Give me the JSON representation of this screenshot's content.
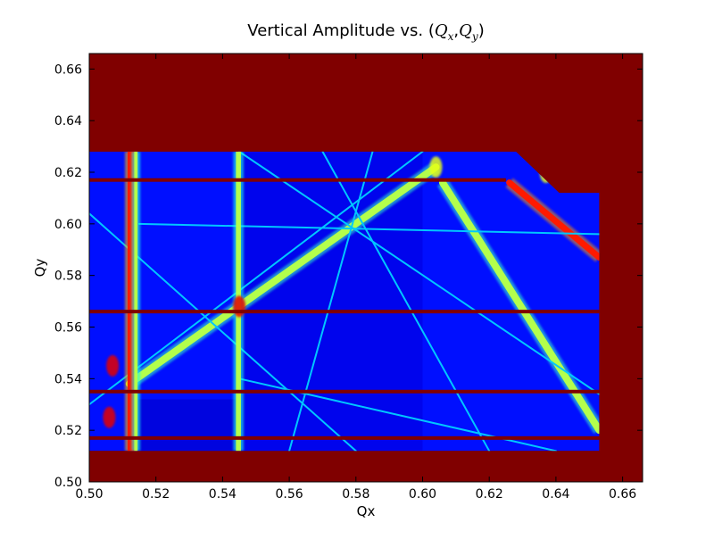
{
  "chart_data": {
    "type": "heatmap",
    "title": {
      "text": "Vertical Amplitude vs. ",
      "open": "(",
      "qx_base": "Q",
      "qx_sub": "x",
      "comma": ",",
      "qy_base": "Q",
      "qy_sub": "y",
      "close": ")"
    },
    "xlabel": "Qx",
    "ylabel": "Qy",
    "xlim": [
      0.5,
      0.666
    ],
    "ylim": [
      0.5,
      0.666
    ],
    "xticks": [
      "0.50",
      "0.52",
      "0.54",
      "0.56",
      "0.58",
      "0.60",
      "0.62",
      "0.64",
      "0.66"
    ],
    "yticks": [
      "0.50",
      "0.52",
      "0.54",
      "0.56",
      "0.58",
      "0.60",
      "0.62",
      "0.64",
      "0.66"
    ],
    "colormap": "jet",
    "data_extent": {
      "x": [
        0.5,
        0.653
      ],
      "y": [
        0.512,
        0.628
      ]
    },
    "background_color": "#800000",
    "vertical_bands": [
      {
        "x": [
          0.5115,
          0.5135
        ],
        "level": "high"
      },
      {
        "x": [
          0.5135,
          0.5145
        ],
        "level": "mid"
      },
      {
        "x": [
          0.544,
          0.5455
        ],
        "level": "mid"
      }
    ],
    "horizontal_lines": [
      {
        "y": 0.517,
        "x": [
          0.5,
          0.653
        ]
      },
      {
        "y": 0.535,
        "x": [
          0.5,
          0.653
        ]
      },
      {
        "y": 0.566,
        "x": [
          0.5,
          0.653
        ]
      },
      {
        "y": 0.617,
        "x": [
          0.5,
          0.625
        ]
      }
    ],
    "resonance_lines": [
      {
        "from": [
          0.512,
          0.538
        ],
        "to": [
          0.604,
          0.622
        ],
        "level": "mid"
      },
      {
        "from": [
          0.606,
          0.616
        ],
        "to": [
          0.653,
          0.52
        ],
        "level": "mid"
      },
      {
        "from": [
          0.626,
          0.616
        ],
        "to": [
          0.653,
          0.587
        ],
        "level": "high"
      },
      {
        "from": [
          0.5,
          0.604
        ],
        "to": [
          0.58,
          0.512
        ],
        "level": "low"
      },
      {
        "from": [
          0.545,
          0.628
        ],
        "to": [
          0.653,
          0.534
        ],
        "level": "low"
      },
      {
        "from": [
          0.5,
          0.53
        ],
        "to": [
          0.6,
          0.628
        ],
        "level": "low"
      },
      {
        "from": [
          0.57,
          0.628
        ],
        "to": [
          0.62,
          0.512
        ],
        "level": "low"
      },
      {
        "from": [
          0.585,
          0.628
        ],
        "to": [
          0.56,
          0.512
        ],
        "level": "low"
      },
      {
        "from": [
          0.515,
          0.6
        ],
        "to": [
          0.653,
          0.596
        ],
        "level": "low"
      },
      {
        "from": [
          0.545,
          0.54
        ],
        "to": [
          0.64,
          0.512
        ],
        "level": "low"
      }
    ],
    "hot_spots": [
      {
        "x": 0.545,
        "y": 0.568,
        "level": "high"
      },
      {
        "x": 0.506,
        "y": 0.525,
        "level": "high"
      },
      {
        "x": 0.507,
        "y": 0.545,
        "level": "high"
      },
      {
        "x": 0.604,
        "y": 0.622,
        "level": "mid"
      },
      {
        "x": 0.637,
        "y": 0.62,
        "level": "mid"
      }
    ],
    "grid": false,
    "legend": "none",
    "colorbar": false
  }
}
